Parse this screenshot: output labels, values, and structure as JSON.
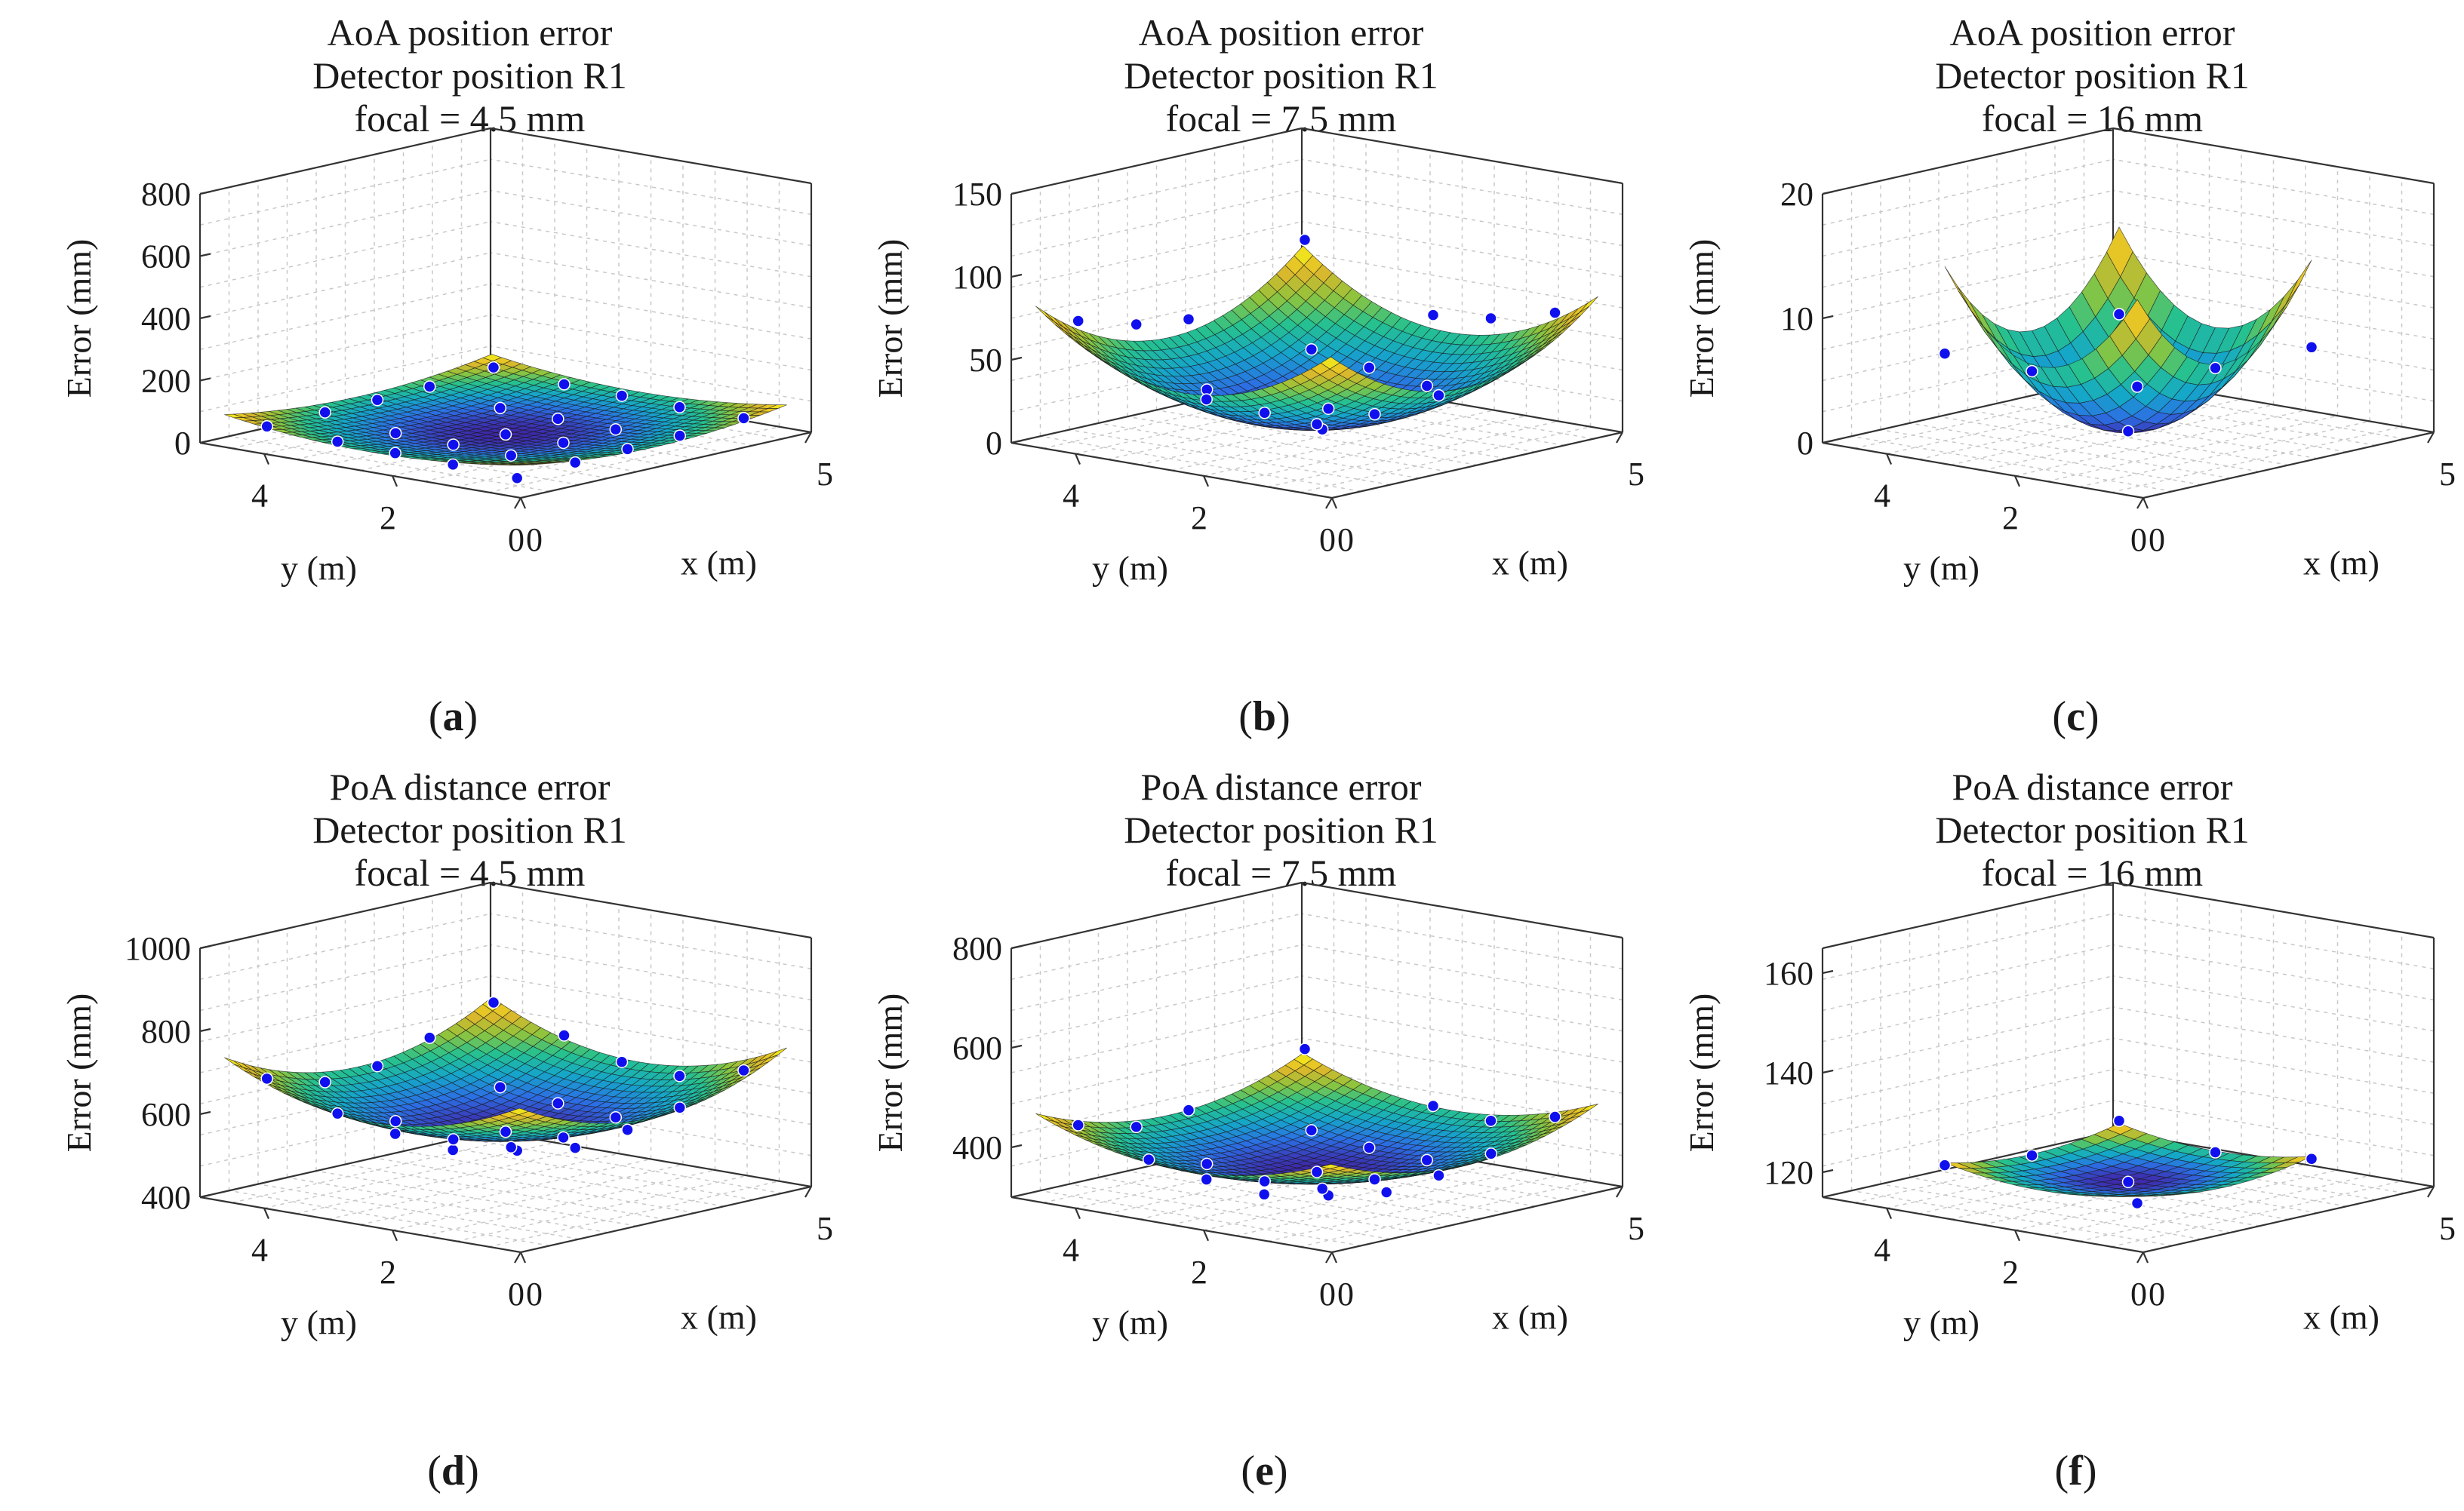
{
  "figure": {
    "colormap": [
      "#3e26a8",
      "#2c6fe4",
      "#15a6c9",
      "#26c18f",
      "#8fc43c",
      "#e1b72b",
      "#f9fb15"
    ],
    "marker_color": "#1010ee",
    "grid": true
  },
  "chart_data": [
    {
      "type": "surface",
      "title_lines": [
        "AoA position error",
        "Detector position R1",
        "focal = 4.5 mm"
      ],
      "panel_label": "a",
      "xlabel": "x (m)",
      "ylabel": "y (m)",
      "zlabel": "Error (mm)",
      "xlim": [
        0,
        5
      ],
      "ylim": [
        0,
        5
      ],
      "zlim": [
        0,
        800
      ],
      "xticks": [
        "0",
        "5"
      ],
      "yticks": [
        "0",
        "2",
        "4"
      ],
      "zticks": [
        "0",
        "200",
        "400",
        "600",
        "800"
      ],
      "extent": [
        [
          0.2,
          4.8
        ],
        [
          0.2,
          4.8
        ]
      ],
      "surface": {
        "center": [
          2.5,
          2.5
        ],
        "min": 10,
        "k": 7.5
      },
      "grid_n": 30,
      "points": [
        [
          0.6,
          0.6,
          17
        ],
        [
          4.5,
          0.6,
          45
        ],
        [
          0.6,
          4.5,
          45
        ],
        [
          4.5,
          4.5,
          70
        ],
        [
          1.6,
          1.6,
          12
        ],
        [
          2.5,
          2.5,
          10
        ],
        [
          3.4,
          1.6,
          20
        ],
        [
          1.6,
          3.4,
          20
        ],
        [
          3.4,
          3.4,
          25
        ],
        [
          2.5,
          0.6,
          30
        ],
        [
          0.6,
          2.5,
          30
        ],
        [
          2.5,
          4.5,
          50
        ],
        [
          4.5,
          2.5,
          50
        ],
        [
          1.6,
          0.6,
          25
        ],
        [
          3.4,
          0.6,
          35
        ],
        [
          0.6,
          1.6,
          25
        ],
        [
          0.6,
          3.4,
          35
        ],
        [
          1.6,
          4.5,
          48
        ],
        [
          3.4,
          4.5,
          55
        ],
        [
          4.5,
          1.6,
          45
        ],
        [
          4.5,
          3.4,
          55
        ],
        [
          2.5,
          1.6,
          15
        ],
        [
          1.6,
          2.5,
          15
        ],
        [
          3.4,
          2.5,
          22
        ]
      ]
    },
    {
      "type": "surface",
      "title_lines": [
        "AoA position error",
        "Detector position R1",
        "focal = 7.5 mm"
      ],
      "panel_label": "b",
      "xlabel": "x (m)",
      "ylabel": "y (m)",
      "zlabel": "Error (mm)",
      "xlim": [
        0,
        5
      ],
      "ylim": [
        0,
        5
      ],
      "zlim": [
        0,
        150
      ],
      "xticks": [
        "0",
        "5"
      ],
      "yticks": [
        "0",
        "2",
        "4"
      ],
      "zticks": [
        "0",
        "50",
        "100",
        "150"
      ],
      "extent": [
        [
          0.2,
          4.8
        ],
        [
          0.2,
          4.8
        ]
      ],
      "surface": {
        "center": [
          2.5,
          2.5
        ],
        "min": 8,
        "k": 7.0
      },
      "grid_n": 30,
      "points": [
        [
          0.6,
          0.6,
          45
        ],
        [
          4.5,
          0.6,
          72
        ],
        [
          0.6,
          4.5,
          72
        ],
        [
          4.5,
          4.5,
          90
        ],
        [
          1.6,
          1.6,
          18
        ],
        [
          2.5,
          2.5,
          8
        ],
        [
          3.4,
          1.6,
          30
        ],
        [
          1.6,
          3.4,
          30
        ],
        [
          3.4,
          3.4,
          40
        ],
        [
          2.5,
          0.6,
          38
        ],
        [
          0.6,
          2.5,
          38
        ],
        [
          2.5,
          4.5,
          58
        ],
        [
          4.5,
          2.5,
          58
        ],
        [
          1.6,
          4.5,
          62
        ],
        [
          4.5,
          1.6,
          62
        ],
        [
          2.5,
          1.6,
          20
        ],
        [
          1.6,
          2.5,
          22
        ],
        [
          3.4,
          2.5,
          35
        ]
      ]
    },
    {
      "type": "surface",
      "title_lines": [
        "AoA position error",
        "Detector position R1",
        "focal = 16 mm"
      ],
      "panel_label": "c",
      "xlabel": "x (m)",
      "ylabel": "y (m)",
      "zlabel": "Error (mm)",
      "xlim": [
        0,
        5
      ],
      "ylim": [
        0,
        5
      ],
      "zlim": [
        0,
        20
      ],
      "xticks": [
        "0",
        "5"
      ],
      "yticks": [
        "0",
        "2",
        "4"
      ],
      "zticks": [
        "0",
        "10",
        "20"
      ],
      "extent": [
        [
          1.0,
          4.0
        ],
        [
          1.0,
          4.0
        ]
      ],
      "surface": {
        "center": [
          2.5,
          2.5
        ],
        "min": 0.5,
        "k": 3.0
      },
      "grid_n": 14,
      "points": [
        [
          1.0,
          1.0,
          7
        ],
        [
          4.0,
          4.0,
          7
        ],
        [
          1.0,
          4.0,
          7
        ],
        [
          4.0,
          1.0,
          7
        ],
        [
          2.5,
          2.5,
          0.5
        ],
        [
          2.5,
          4.0,
          4
        ],
        [
          4.0,
          2.5,
          4
        ]
      ]
    },
    {
      "type": "surface",
      "title_lines": [
        "PoA distance error",
        "Detector position R1",
        "focal = 4.5 mm"
      ],
      "panel_label": "d",
      "xlabel": "x (m)",
      "ylabel": "y (m)",
      "zlabel": "Error (mm)",
      "xlim": [
        0,
        5
      ],
      "ylim": [
        0,
        5
      ],
      "zlim": [
        400,
        1000
      ],
      "xticks": [
        "0",
        "5"
      ],
      "yticks": [
        "0",
        "2",
        "4"
      ],
      "zticks": [
        "400",
        "600",
        "800",
        "1000"
      ],
      "extent": [
        [
          0.2,
          4.8
        ],
        [
          0.2,
          4.8
        ]
      ],
      "surface": {
        "center": [
          2.5,
          2.5
        ],
        "min": 545,
        "k": 18.0
      },
      "grid_n": 30,
      "points": [
        [
          0.6,
          0.6,
          610
        ],
        [
          4.5,
          0.6,
          680
        ],
        [
          0.6,
          4.5,
          680
        ],
        [
          4.5,
          4.5,
          740
        ],
        [
          1.6,
          1.6,
          560
        ],
        [
          2.5,
          2.5,
          545
        ],
        [
          3.4,
          1.6,
          575
        ],
        [
          1.6,
          3.4,
          575
        ],
        [
          3.4,
          3.4,
          600
        ],
        [
          2.5,
          0.6,
          600
        ],
        [
          0.6,
          2.5,
          600
        ],
        [
          2.5,
          4.5,
          650
        ],
        [
          4.5,
          2.5,
          650
        ],
        [
          1.6,
          0.6,
          585
        ],
        [
          0.6,
          1.6,
          585
        ],
        [
          1.6,
          4.5,
          640
        ],
        [
          4.5,
          1.6,
          640
        ],
        [
          3.4,
          0.6,
          625
        ],
        [
          0.6,
          3.4,
          625
        ],
        [
          3.4,
          4.5,
          690
        ],
        [
          4.5,
          3.4,
          690
        ],
        [
          2.5,
          1.6,
          555
        ],
        [
          1.6,
          2.5,
          555
        ],
        [
          3.4,
          2.5,
          585
        ]
      ]
    },
    {
      "type": "surface",
      "title_lines": [
        "PoA distance error",
        "Detector position R1",
        "focal = 7.5 mm"
      ],
      "panel_label": "e",
      "xlabel": "x (m)",
      "ylabel": "y (m)",
      "zlabel": "Error (mm)",
      "xlim": [
        0,
        5
      ],
      "ylim": [
        0,
        5
      ],
      "zlim": [
        300,
        800
      ],
      "xticks": [
        "0",
        "5"
      ],
      "yticks": [
        "0",
        "2",
        "4"
      ],
      "zticks": [
        "400",
        "600",
        "800"
      ],
      "extent": [
        [
          0.2,
          4.8
        ],
        [
          0.2,
          4.8
        ]
      ],
      "surface": {
        "center": [
          2.5,
          2.5
        ],
        "min": 340,
        "k": 12.0
      },
      "grid_n": 30,
      "points": [
        [
          0.6,
          0.6,
          385
        ],
        [
          4.5,
          0.6,
          440
        ],
        [
          0.6,
          4.5,
          440
        ],
        [
          4.5,
          4.5,
          490
        ],
        [
          1.6,
          1.6,
          350
        ],
        [
          2.5,
          2.5,
          340
        ],
        [
          3.4,
          1.6,
          360
        ],
        [
          1.6,
          3.4,
          360
        ],
        [
          3.4,
          3.4,
          380
        ],
        [
          2.5,
          0.6,
          375
        ],
        [
          0.6,
          2.5,
          375
        ],
        [
          2.5,
          4.5,
          420
        ],
        [
          4.5,
          2.5,
          420
        ],
        [
          1.6,
          0.6,
          365
        ],
        [
          0.6,
          1.6,
          365
        ],
        [
          1.6,
          4.5,
          410
        ],
        [
          4.5,
          1.6,
          410
        ],
        [
          3.4,
          0.6,
          395
        ],
        [
          0.6,
          3.4,
          395
        ],
        [
          2.5,
          1.6,
          345
        ],
        [
          1.6,
          2.5,
          345
        ],
        [
          3.4,
          2.5,
          365
        ]
      ]
    },
    {
      "type": "surface",
      "title_lines": [
        "PoA distance error",
        "Detector position R1",
        "focal = 16 mm"
      ],
      "panel_label": "f",
      "xlabel": "x (m)",
      "ylabel": "y (m)",
      "zlabel": "Error (mm)",
      "xlim": [
        0,
        5
      ],
      "ylim": [
        0,
        5
      ],
      "zlim": [
        115,
        165
      ],
      "xticks": [
        "0",
        "5"
      ],
      "yticks": [
        "0",
        "2",
        "4"
      ],
      "zticks": [
        "120",
        "140",
        "160"
      ],
      "extent": [
        [
          1.0,
          4.0
        ],
        [
          1.0,
          4.0
        ]
      ],
      "surface": {
        "center": [
          2.5,
          2.5
        ],
        "min": 117,
        "k": 1.0
      },
      "grid_n": 14,
      "points": [
        [
          1.0,
          1.0,
          120
        ],
        [
          4.0,
          4.0,
          122
        ],
        [
          1.0,
          4.0,
          121
        ],
        [
          4.0,
          1.0,
          121
        ],
        [
          2.5,
          2.5,
          117
        ],
        [
          2.5,
          4.0,
          119
        ],
        [
          4.0,
          2.5,
          119
        ]
      ]
    }
  ]
}
